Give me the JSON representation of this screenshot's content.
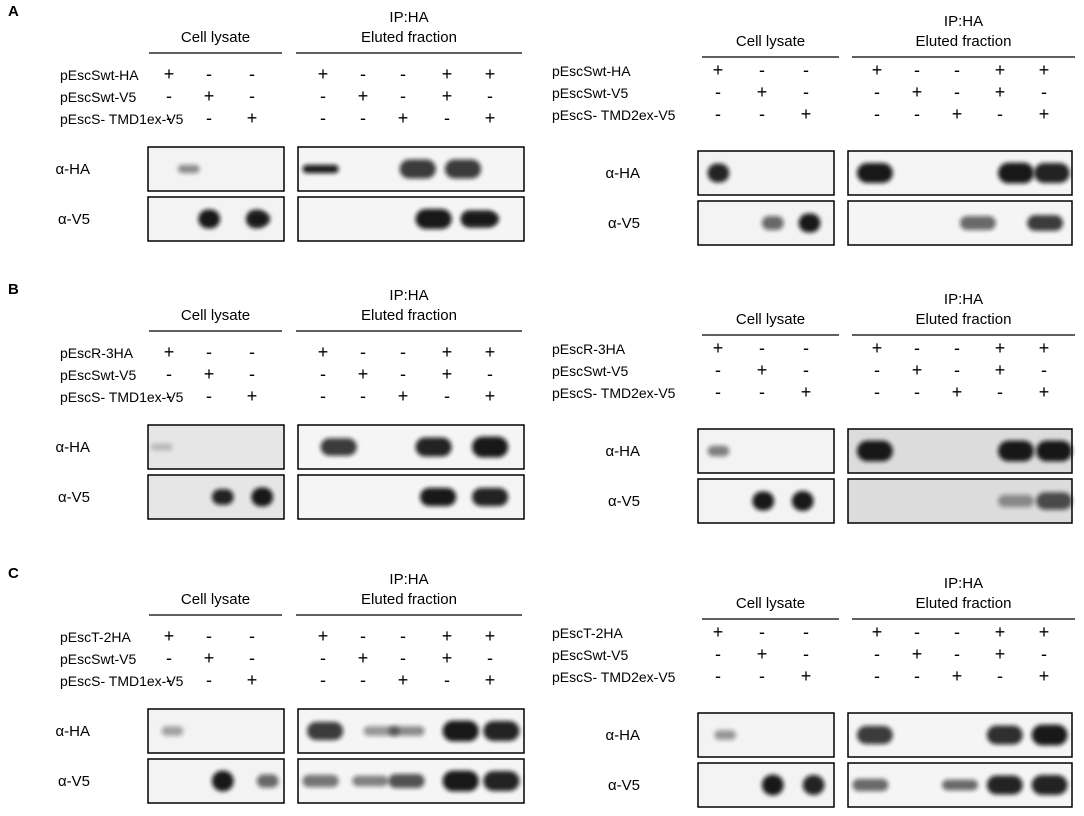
{
  "common": {
    "cell_lysate": "Cell lysate",
    "ip_line1": "IP:HA",
    "ip_line2": "Eluted fraction",
    "alpha_ha": "α-HA",
    "alpha_v5": "α-V5"
  },
  "panels": [
    {
      "label": "A",
      "left": {
        "rows": [
          "pEscSwt-HA",
          "pEscSwt-V5",
          "pEscS- TMD1ex-V5"
        ],
        "lysate": [
          [
            "+",
            "-",
            "-"
          ],
          [
            "-",
            "+",
            "-"
          ],
          [
            "-",
            "-",
            "+"
          ]
        ],
        "ip": [
          [
            "+",
            "-",
            "-",
            "+",
            "+"
          ],
          [
            "-",
            "+",
            "-",
            "+",
            "-"
          ],
          [
            "-",
            "-",
            "+",
            "-",
            "+"
          ]
        ]
      },
      "right": {
        "rows": [
          "pEscSwt-HA",
          "pEscSwt-V5",
          "pEscS- TMD2ex-V5"
        ],
        "lysate": [
          [
            "+",
            "-",
            "-"
          ],
          [
            "-",
            "+",
            "-"
          ],
          [
            "-",
            "-",
            "+"
          ]
        ],
        "ip": [
          [
            "+",
            "-",
            "-",
            "+",
            "+"
          ],
          [
            "-",
            "+",
            "-",
            "+",
            "-"
          ],
          [
            "-",
            "-",
            "+",
            "-",
            "+"
          ]
        ]
      }
    },
    {
      "label": "B",
      "left": {
        "rows": [
          "pEscR-3HA",
          "pEscSwt-V5",
          "pEscS- TMD1ex-V5"
        ],
        "lysate": [
          [
            "+",
            "-",
            "-"
          ],
          [
            "-",
            "+",
            "-"
          ],
          [
            "-",
            "-",
            "+"
          ]
        ],
        "ip": [
          [
            "+",
            "-",
            "-",
            "+",
            "+"
          ],
          [
            "-",
            "+",
            "-",
            "+",
            "-"
          ],
          [
            "-",
            "-",
            "+",
            "-",
            "+"
          ]
        ]
      },
      "right": {
        "rows": [
          "pEscR-3HA",
          "pEscSwt-V5",
          "pEscS- TMD2ex-V5"
        ],
        "lysate": [
          [
            "+",
            "-",
            "-"
          ],
          [
            "-",
            "+",
            "-"
          ],
          [
            "-",
            "-",
            "+"
          ]
        ],
        "ip": [
          [
            "+",
            "-",
            "-",
            "+",
            "+"
          ],
          [
            "-",
            "+",
            "-",
            "+",
            "-"
          ],
          [
            "-",
            "-",
            "+",
            "-",
            "+"
          ]
        ]
      }
    },
    {
      "label": "C",
      "left": {
        "rows": [
          "pEscT-2HA",
          "pEscSwt-V5",
          "pEscS- TMD1ex-V5"
        ],
        "lysate": [
          [
            "+",
            "-",
            "-"
          ],
          [
            "-",
            "+",
            "-"
          ],
          [
            "-",
            "-",
            "+"
          ]
        ],
        "ip": [
          [
            "+",
            "-",
            "-",
            "+",
            "+"
          ],
          [
            "-",
            "+",
            "-",
            "+",
            "-"
          ],
          [
            "-",
            "-",
            "+",
            "-",
            "+"
          ]
        ]
      },
      "right": {
        "rows": [
          "pEscT-2HA",
          "pEscSwt-V5",
          "pEscS- TMD2ex-V5"
        ],
        "lysate": [
          [
            "+",
            "-",
            "-"
          ],
          [
            "-",
            "+",
            "-"
          ],
          [
            "-",
            "-",
            "+"
          ]
        ],
        "ip": [
          [
            "+",
            "-",
            "-",
            "+",
            "+"
          ],
          [
            "-",
            "+",
            "-",
            "+",
            "-"
          ],
          [
            "-",
            "-",
            "+",
            "-",
            "+"
          ]
        ]
      }
    }
  ]
}
